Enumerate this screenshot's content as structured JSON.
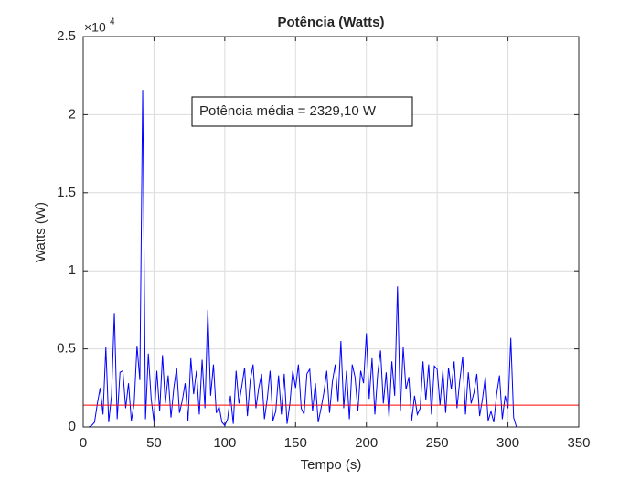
{
  "chart_data": {
    "type": "line",
    "title": "Potência (Watts)",
    "xlabel": "Tempo (s)",
    "ylabel": "Watts (W)",
    "y_exponent": "×10",
    "y_exponent_power": "4",
    "annotation": "Potência média = 2329,10 W",
    "color": "#0000ff",
    "reference_line": {
      "value": 1400,
      "color": "#ff0000"
    },
    "xlim": [
      0,
      350
    ],
    "xticks": [
      0,
      50,
      100,
      150,
      200,
      250,
      300,
      350
    ],
    "ylim": [
      0,
      25000
    ],
    "yticks": [
      {
        "value": 0,
        "label": "0"
      },
      {
        "value": 5000,
        "label": "0.5"
      },
      {
        "value": 10000,
        "label": "1"
      },
      {
        "value": 15000,
        "label": "1.5"
      },
      {
        "value": 20000,
        "label": "2"
      },
      {
        "value": 25000,
        "label": "2.5"
      }
    ],
    "grid": true,
    "x": [
      0,
      2,
      4,
      6,
      8,
      10,
      12,
      14,
      16,
      18,
      20,
      22,
      24,
      26,
      28,
      30,
      32,
      34,
      36,
      38,
      40,
      42,
      44,
      46,
      48,
      50,
      52,
      54,
      56,
      58,
      60,
      62,
      64,
      66,
      68,
      70,
      72,
      74,
      76,
      78,
      80,
      82,
      84,
      86,
      88,
      90,
      92,
      94,
      96,
      98,
      100,
      102,
      104,
      106,
      108,
      110,
      112,
      114,
      116,
      118,
      120,
      122,
      124,
      126,
      128,
      130,
      132,
      134,
      136,
      138,
      140,
      142,
      144,
      146,
      148,
      150,
      152,
      154,
      156,
      158,
      160,
      162,
      164,
      166,
      168,
      170,
      172,
      174,
      176,
      178,
      180,
      182,
      184,
      186,
      188,
      190,
      192,
      194,
      196,
      198,
      200,
      202,
      204,
      206,
      208,
      210,
      212,
      214,
      216,
      218,
      220,
      222,
      224,
      226,
      228,
      230,
      232,
      234,
      236,
      238,
      240,
      242,
      244,
      246,
      248,
      250,
      252,
      254,
      256,
      258,
      260,
      262,
      264,
      266,
      268,
      270,
      272,
      274,
      276,
      278,
      280,
      282,
      284,
      286,
      288,
      290,
      292,
      294,
      296,
      298,
      300,
      302,
      304,
      306,
      308,
      310
    ],
    "values": [
      0,
      0,
      0,
      100,
      300,
      1500,
      2500,
      800,
      5100,
      300,
      2000,
      7300,
      500,
      3500,
      3600,
      1200,
      2800,
      400,
      1500,
      5200,
      3000,
      21600,
      500,
      4700,
      1800,
      300,
      3600,
      1000,
      4600,
      1500,
      3300,
      600,
      2500,
      3800,
      900,
      1700,
      2800,
      400,
      4400,
      2100,
      3600,
      800,
      4300,
      1200,
      7500,
      2000,
      4000,
      900,
      1300,
      300,
      100,
      500,
      2000,
      200,
      3600,
      1500,
      2600,
      3800,
      700,
      3000,
      4000,
      1200,
      2500,
      3400,
      500,
      1800,
      3600,
      400,
      1000,
      3300,
      800,
      3400,
      200,
      1500,
      3600,
      2500,
      4000,
      1200,
      800,
      3400,
      3700,
      1000,
      2800,
      300,
      1200,
      2200,
      3600,
      900,
      2900,
      4000,
      1600,
      5500,
      1200,
      3600,
      500,
      4000,
      3200,
      1000,
      3600,
      2800,
      6000,
      1800,
      4400,
      800,
      3400,
      4900,
      1500,
      3500,
      600,
      4200,
      2000,
      9000,
      1000,
      5100,
      2400,
      3200,
      400,
      2000,
      800,
      1200,
      4200,
      1700,
      4000,
      800,
      3900,
      3700,
      1400,
      3600,
      900,
      3800,
      2400,
      4200,
      1200,
      3000,
      4500,
      800,
      3500,
      1500,
      2200,
      3400,
      700,
      1800,
      3200,
      400,
      1000,
      300,
      2100,
      3300,
      500,
      2000,
      1200,
      5700,
      600,
      0,
      0,
      0
    ]
  }
}
